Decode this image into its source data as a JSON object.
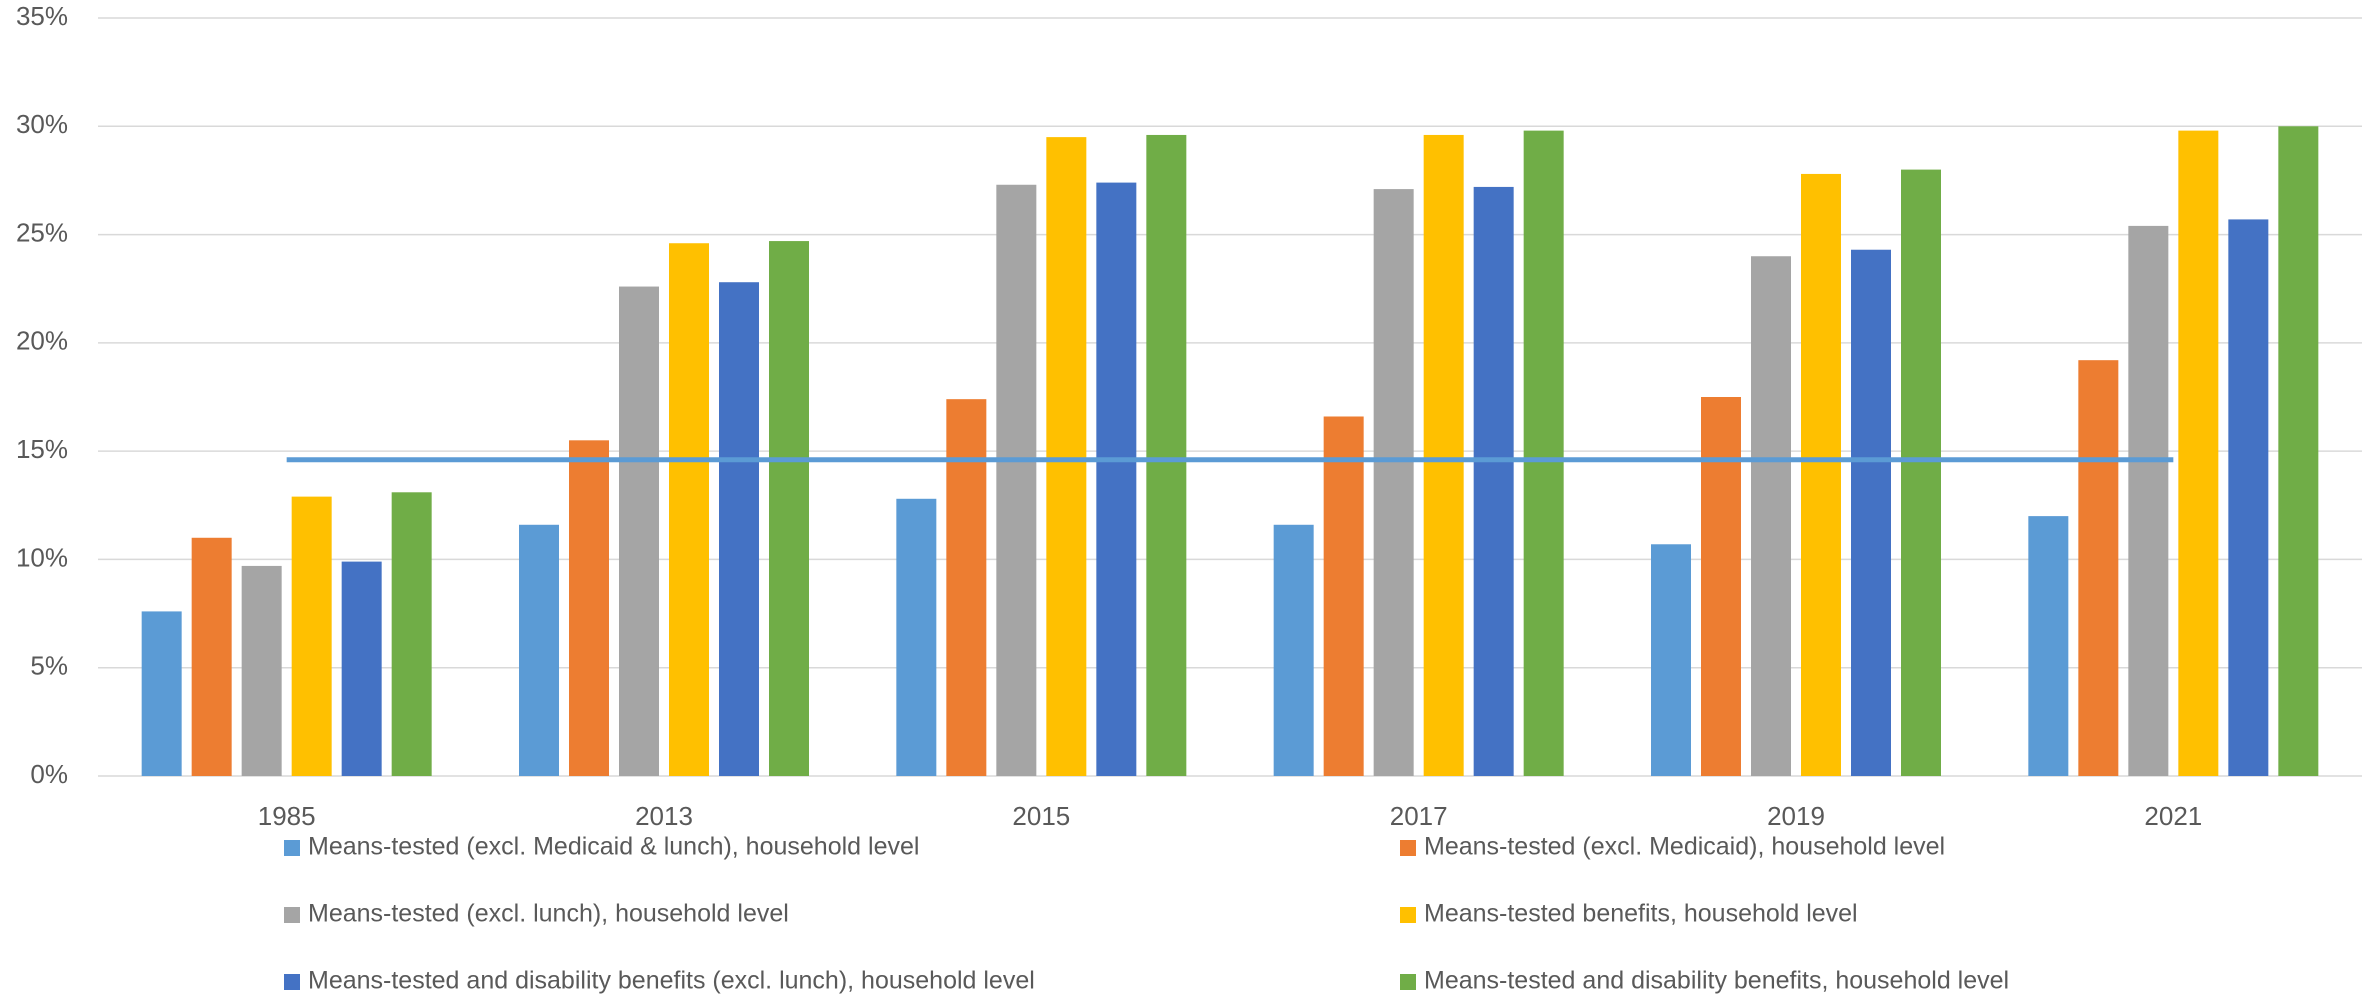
{
  "chart_data": {
    "type": "bar",
    "categories": [
      "1985",
      "2013",
      "2015",
      "2017",
      "2019",
      "2021"
    ],
    "series": [
      {
        "name": "Means-tested (excl. Medicaid & lunch), household level",
        "color": "#5b9bd5",
        "values": [
          7.6,
          11.6,
          12.8,
          11.6,
          10.7,
          12.0
        ]
      },
      {
        "name": "Means-tested (excl. Medicaid), household level",
        "color": "#ed7d31",
        "values": [
          11.0,
          15.5,
          17.4,
          16.6,
          17.5,
          19.2
        ]
      },
      {
        "name": "Means-tested (excl. lunch), household level",
        "color": "#a5a5a5",
        "values": [
          9.7,
          22.6,
          27.3,
          27.1,
          24.0,
          25.4
        ]
      },
      {
        "name": "Means-tested benefits, household level",
        "color": "#ffc000",
        "values": [
          12.9,
          24.6,
          29.5,
          29.6,
          27.8,
          29.8
        ]
      },
      {
        "name": "Means-tested and disability benefits (excl. lunch), household level",
        "color": "#4472c4",
        "values": [
          9.9,
          22.8,
          27.4,
          27.2,
          24.3,
          25.7
        ]
      },
      {
        "name": "Means-tested and disability benefits, household level",
        "color": "#70ad47",
        "values": [
          13.1,
          24.7,
          29.6,
          29.8,
          28.0,
          30.0
        ]
      }
    ],
    "lines": [
      {
        "color": "#5b9bd5",
        "values": [
          14.6,
          14.6,
          14.6,
          14.6,
          14.6,
          14.6
        ]
      }
    ],
    "ylim": [
      0,
      35
    ],
    "yticks": [
      {
        "value": 0,
        "label": "0%"
      },
      {
        "value": 5,
        "label": "5%"
      },
      {
        "value": 10,
        "label": "10%"
      },
      {
        "value": 15,
        "label": "15%"
      },
      {
        "value": 20,
        "label": "20%"
      },
      {
        "value": 25,
        "label": "25%"
      },
      {
        "value": 30,
        "label": "30%"
      },
      {
        "value": 35,
        "label": "35%"
      }
    ],
    "grid": true
  }
}
